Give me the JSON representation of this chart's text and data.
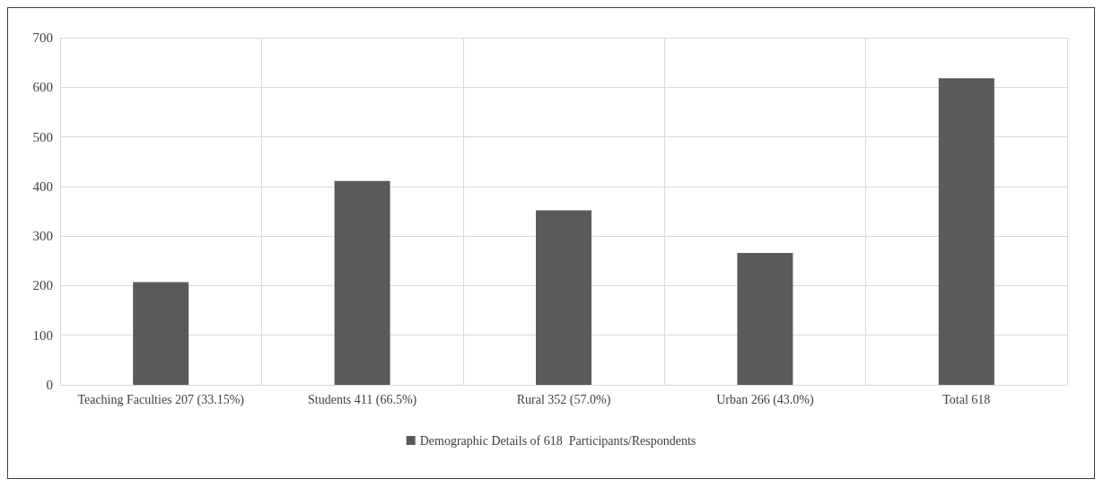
{
  "chart_data": {
    "type": "bar",
    "categories": [
      "Teaching Faculties 207 (33.15%)",
      "Students 411 (66.5%)",
      "Rural 352 (57.0%)",
      "Urban 266 (43.0%)",
      "Total 618"
    ],
    "series": [
      {
        "name": "Demographic Details of 618  Participants/Respondents",
        "color": "#5a5a5a",
        "values": [
          207,
          411,
          352,
          266,
          618
        ]
      }
    ],
    "ylim": [
      0,
      700
    ],
    "yticks": [
      0,
      100,
      200,
      300,
      400,
      500,
      600,
      700
    ],
    "grid": true,
    "legend": "bottom"
  }
}
